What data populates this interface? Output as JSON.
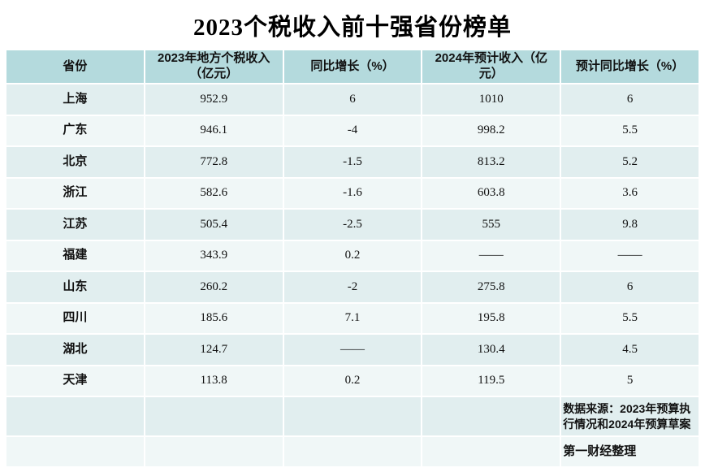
{
  "title": "2023个税收入前十强省份榜单",
  "colors": {
    "header_bg": "#b4dadd",
    "row_teal_bg": "#e1eeef",
    "row_light_bg": "#f0f7f7",
    "page_bg": "#ffffff",
    "text": "#111111"
  },
  "table": {
    "headers": [
      "省份",
      "2023年地方个税收入（亿元）",
      "同比增长（%）",
      "2024年预计收入（亿元）",
      "预计同比增长（%）"
    ],
    "rows": [
      [
        "上海",
        "952.9",
        "6",
        "1010",
        "6"
      ],
      [
        "广东",
        "946.1",
        "-4",
        "998.2",
        "5.5"
      ],
      [
        "北京",
        "772.8",
        "-1.5",
        "813.2",
        "5.2"
      ],
      [
        "浙江",
        "582.6",
        "-1.6",
        "603.8",
        "3.6"
      ],
      [
        "江苏",
        "505.4",
        "-2.5",
        "555",
        "9.8"
      ],
      [
        "福建",
        "343.9",
        "0.2",
        "——",
        "——"
      ],
      [
        "山东",
        "260.2",
        "-2",
        "275.8",
        "6"
      ],
      [
        "四川",
        "185.6",
        "7.1",
        "195.8",
        "5.5"
      ],
      [
        "湖北",
        "124.7",
        "——",
        "130.4",
        "4.5"
      ],
      [
        "天津",
        "113.8",
        "0.2",
        "119.5",
        "5"
      ]
    ],
    "footer": {
      "source": "数据来源：2023年预算执行情况和2024年预算草案",
      "credit": "第一财经整理"
    }
  },
  "chart_data": {
    "type": "table",
    "title": "2023个税收入前十强省份榜单",
    "columns": [
      "省份",
      "2023年地方个税收入（亿元）",
      "同比增长（%）",
      "2024年预计收入（亿元）",
      "预计同比增长（%）"
    ],
    "categories": [
      "上海",
      "广东",
      "北京",
      "浙江",
      "江苏",
      "福建",
      "山东",
      "四川",
      "湖北",
      "天津"
    ],
    "series": [
      {
        "name": "2023年地方个税收入（亿元）",
        "values": [
          952.9,
          946.1,
          772.8,
          582.6,
          505.4,
          343.9,
          260.2,
          185.6,
          124.7,
          113.8
        ]
      },
      {
        "name": "同比增长（%）",
        "values": [
          6,
          -4,
          -1.5,
          -1.6,
          -2.5,
          0.2,
          -2,
          7.1,
          null,
          0.2
        ]
      },
      {
        "name": "2024年预计收入（亿元）",
        "values": [
          1010,
          998.2,
          813.2,
          603.8,
          555,
          null,
          275.8,
          195.8,
          130.4,
          119.5
        ]
      },
      {
        "name": "预计同比增长（%）",
        "values": [
          6,
          5.5,
          5.2,
          3.6,
          9.8,
          null,
          6,
          5.5,
          4.5,
          5
        ]
      }
    ],
    "missing_value_marker": "——",
    "source": "数据来源：2023年预算执行情况和2024年预算草案",
    "credit": "第一财经整理"
  }
}
